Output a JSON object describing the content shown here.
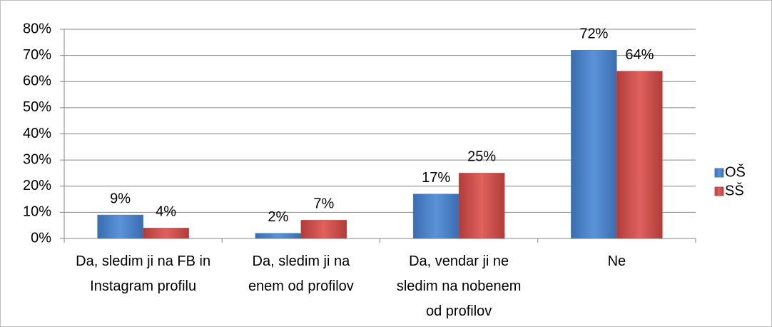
{
  "chart_data": {
    "type": "bar",
    "categories": [
      "Da, sledim ji na FB in Instagram profilu",
      "Da, sledim ji na enem od profilov",
      "Da, vendar ji ne sledim na nobenem od profilov",
      "Ne"
    ],
    "series": [
      {
        "name": "OŠ",
        "color": "#4a7ebb",
        "values": [
          9,
          2,
          17,
          72
        ],
        "value_labels": [
          "9%",
          "2%",
          "17%",
          "72%"
        ]
      },
      {
        "name": "SŠ",
        "color": "#c0504d",
        "values": [
          4,
          7,
          25,
          64
        ],
        "value_labels": [
          "4%",
          "7%",
          "25%",
          "64%"
        ]
      }
    ],
    "ylim": [
      0,
      80
    ],
    "yticks": [
      {
        "value": 0,
        "label": "0%"
      },
      {
        "value": 10,
        "label": "10%"
      },
      {
        "value": 20,
        "label": "20%"
      },
      {
        "value": 30,
        "label": "30%"
      },
      {
        "value": 40,
        "label": "40%"
      },
      {
        "value": 50,
        "label": "50%"
      },
      {
        "value": 60,
        "label": "60%"
      },
      {
        "value": 70,
        "label": "70%"
      },
      {
        "value": 80,
        "label": "80%"
      }
    ],
    "grid": true,
    "legend": "right"
  }
}
